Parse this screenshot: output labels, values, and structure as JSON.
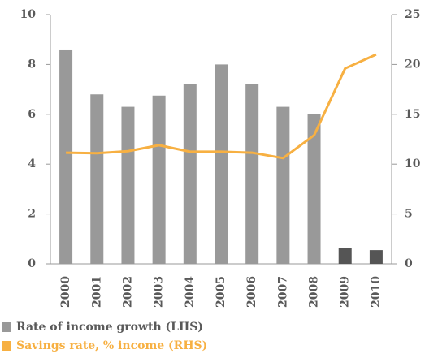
{
  "chart_data": {
    "type": "bar",
    "categories": [
      "2000",
      "2001",
      "2002",
      "2003",
      "2004",
      "2005",
      "2006",
      "2007",
      "2008",
      "2009",
      "2010"
    ],
    "series": [
      {
        "name": "Rate of income growth (LHS)",
        "type": "bar",
        "color": "#999999",
        "colors": [
          "#999999",
          "#999999",
          "#999999",
          "#999999",
          "#999999",
          "#999999",
          "#999999",
          "#999999",
          "#999999",
          "#555555",
          "#555555"
        ],
        "values": [
          8.6,
          6.8,
          6.3,
          6.75,
          7.2,
          8.0,
          7.2,
          6.3,
          6.0,
          0.65,
          0.55
        ]
      },
      {
        "name": "Savings rate, % income (RHS)",
        "type": "line",
        "axis": "y2",
        "color": "#f7b042",
        "values": [
          11.15,
          11.1,
          11.3,
          11.9,
          11.25,
          11.25,
          11.15,
          10.6,
          12.9,
          19.6,
          21.0
        ]
      }
    ],
    "ylim": [
      0,
      10
    ],
    "yticks": [
      0,
      2,
      4,
      6,
      8,
      10
    ],
    "y2lim": [
      0,
      25
    ],
    "y2ticks": [
      0,
      5,
      10,
      15,
      20,
      25
    ]
  }
}
